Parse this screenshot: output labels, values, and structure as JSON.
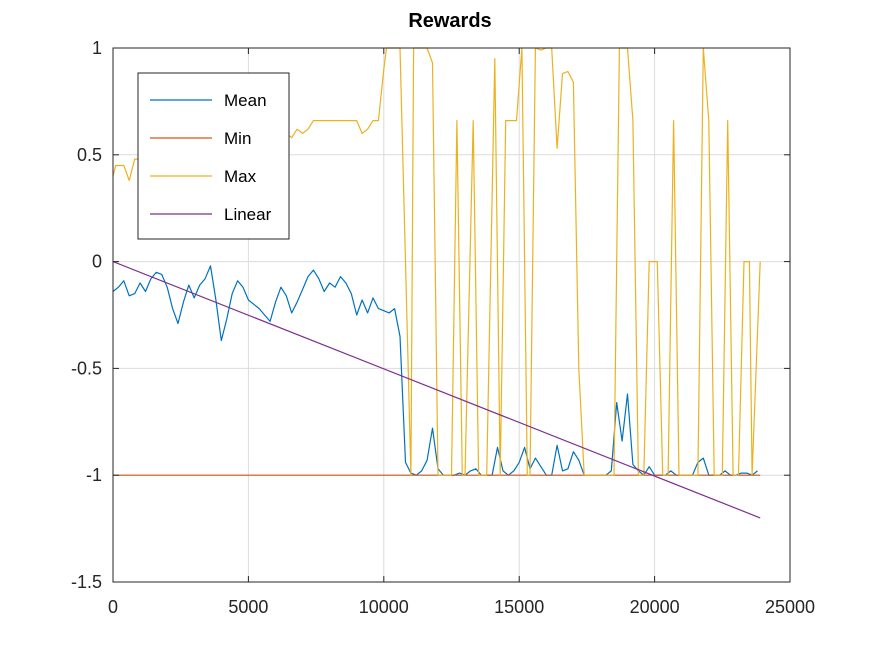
{
  "chart_data": {
    "type": "line",
    "title": "Rewards",
    "xlabel": "",
    "ylabel": "",
    "xlim": [
      0,
      25000
    ],
    "ylim": [
      -1.5,
      1
    ],
    "xticks": [
      0,
      5000,
      10000,
      15000,
      20000,
      25000
    ],
    "xtick_labels": [
      "0",
      "5000",
      "10000",
      "15000",
      "20000",
      "25000"
    ],
    "yticks": [
      -1.5,
      -1,
      -0.5,
      0,
      0.5,
      1
    ],
    "ytick_labels": [
      "-1.5",
      "-1",
      "-0.5",
      "0",
      "0.5",
      "1"
    ],
    "grid": true,
    "legend_position": "top-left",
    "series": [
      {
        "name": "Mean",
        "color": "#0072bd",
        "points": [
          [
            0,
            -0.14
          ],
          [
            200,
            -0.12
          ],
          [
            400,
            -0.09
          ],
          [
            600,
            -0.16
          ],
          [
            800,
            -0.15
          ],
          [
            1000,
            -0.1
          ],
          [
            1200,
            -0.14
          ],
          [
            1400,
            -0.08
          ],
          [
            1600,
            -0.05
          ],
          [
            1800,
            -0.06
          ],
          [
            2000,
            -0.12
          ],
          [
            2200,
            -0.22
          ],
          [
            2400,
            -0.29
          ],
          [
            2600,
            -0.19
          ],
          [
            2800,
            -0.11
          ],
          [
            3000,
            -0.17
          ],
          [
            3200,
            -0.11
          ],
          [
            3400,
            -0.08
          ],
          [
            3600,
            -0.02
          ],
          [
            3800,
            -0.18
          ],
          [
            4000,
            -0.37
          ],
          [
            4200,
            -0.27
          ],
          [
            4400,
            -0.15
          ],
          [
            4600,
            -0.09
          ],
          [
            4800,
            -0.12
          ],
          [
            5000,
            -0.18
          ],
          [
            5200,
            -0.2
          ],
          [
            5400,
            -0.22
          ],
          [
            5600,
            -0.25
          ],
          [
            5800,
            -0.28
          ],
          [
            6000,
            -0.19
          ],
          [
            6200,
            -0.12
          ],
          [
            6400,
            -0.16
          ],
          [
            6600,
            -0.24
          ],
          [
            6800,
            -0.19
          ],
          [
            7000,
            -0.13
          ],
          [
            7200,
            -0.07
          ],
          [
            7400,
            -0.04
          ],
          [
            7600,
            -0.08
          ],
          [
            7800,
            -0.14
          ],
          [
            8000,
            -0.1
          ],
          [
            8200,
            -0.12
          ],
          [
            8400,
            -0.07
          ],
          [
            8600,
            -0.1
          ],
          [
            8800,
            -0.15
          ],
          [
            9000,
            -0.25
          ],
          [
            9200,
            -0.18
          ],
          [
            9400,
            -0.24
          ],
          [
            9600,
            -0.17
          ],
          [
            9800,
            -0.22
          ],
          [
            10000,
            -0.23
          ],
          [
            10200,
            -0.24
          ],
          [
            10400,
            -0.22
          ],
          [
            10600,
            -0.35
          ],
          [
            10800,
            -0.94
          ],
          [
            11000,
            -0.99
          ],
          [
            11200,
            -1.0
          ],
          [
            11400,
            -0.98
          ],
          [
            11600,
            -0.93
          ],
          [
            11800,
            -0.78
          ],
          [
            12000,
            -0.97
          ],
          [
            12200,
            -1.0
          ],
          [
            12400,
            -1.0
          ],
          [
            12600,
            -1.0
          ],
          [
            12800,
            -0.99
          ],
          [
            13000,
            -1.0
          ],
          [
            13200,
            -0.98
          ],
          [
            13400,
            -0.97
          ],
          [
            13600,
            -1.0
          ],
          [
            13800,
            -1.0
          ],
          [
            14000,
            -1.0
          ],
          [
            14200,
            -0.87
          ],
          [
            14400,
            -0.98
          ],
          [
            14600,
            -1.0
          ],
          [
            14800,
            -0.98
          ],
          [
            15000,
            -0.94
          ],
          [
            15200,
            -0.87
          ],
          [
            15400,
            -0.97
          ],
          [
            15600,
            -0.92
          ],
          [
            15800,
            -0.96
          ],
          [
            16000,
            -1.0
          ],
          [
            16200,
            -1.0
          ],
          [
            16400,
            -0.86
          ],
          [
            16600,
            -0.98
          ],
          [
            16800,
            -0.97
          ],
          [
            17000,
            -0.89
          ],
          [
            17200,
            -0.93
          ],
          [
            17400,
            -1.0
          ],
          [
            17600,
            -1.0
          ],
          [
            17800,
            -1.0
          ],
          [
            18000,
            -1.0
          ],
          [
            18200,
            -1.0
          ],
          [
            18400,
            -0.98
          ],
          [
            18600,
            -0.66
          ],
          [
            18800,
            -0.84
          ],
          [
            19000,
            -0.62
          ],
          [
            19200,
            -0.95
          ],
          [
            19400,
            -0.98
          ],
          [
            19600,
            -1.0
          ],
          [
            19800,
            -0.96
          ],
          [
            20000,
            -1.0
          ],
          [
            20200,
            -1.0
          ],
          [
            20400,
            -1.0
          ],
          [
            20600,
            -0.98
          ],
          [
            20800,
            -1.0
          ],
          [
            21000,
            -1.0
          ],
          [
            21200,
            -1.0
          ],
          [
            21400,
            -1.0
          ],
          [
            21600,
            -0.94
          ],
          [
            21800,
            -0.92
          ],
          [
            22000,
            -1.0
          ],
          [
            22200,
            -1.0
          ],
          [
            22400,
            -1.0
          ],
          [
            22600,
            -0.98
          ],
          [
            22800,
            -1.0
          ],
          [
            23000,
            -1.0
          ],
          [
            23200,
            -0.99
          ],
          [
            23400,
            -0.99
          ],
          [
            23600,
            -1.0
          ],
          [
            23800,
            -0.98
          ]
        ]
      },
      {
        "name": "Min",
        "color": "#d95319",
        "points": [
          [
            0,
            -1
          ],
          [
            23900,
            -1
          ]
        ]
      },
      {
        "name": "Max",
        "color": "#edb120",
        "points": [
          [
            0,
            0.4
          ],
          [
            100,
            0.45
          ],
          [
            400,
            0.45
          ],
          [
            600,
            0.38
          ],
          [
            800,
            0.48
          ],
          [
            1000,
            0.48
          ],
          [
            1100,
            0.55
          ],
          [
            1400,
            0.55
          ],
          [
            1600,
            0.6
          ],
          [
            2000,
            0.62
          ],
          [
            2400,
            0.65
          ],
          [
            2800,
            0.62
          ],
          [
            3000,
            0.65
          ],
          [
            3400,
            0.66
          ],
          [
            3800,
            0.66
          ],
          [
            4200,
            0.66
          ],
          [
            4600,
            0.66
          ],
          [
            5000,
            0.66
          ],
          [
            5400,
            0.64
          ],
          [
            5800,
            0.66
          ],
          [
            6000,
            0.62
          ],
          [
            6200,
            0.57
          ],
          [
            6400,
            0.6
          ],
          [
            6600,
            0.58
          ],
          [
            6800,
            0.62
          ],
          [
            7000,
            0.6
          ],
          [
            7200,
            0.62
          ],
          [
            7400,
            0.66
          ],
          [
            7800,
            0.66
          ],
          [
            8200,
            0.66
          ],
          [
            8600,
            0.66
          ],
          [
            9000,
            0.66
          ],
          [
            9200,
            0.6
          ],
          [
            9400,
            0.62
          ],
          [
            9600,
            0.66
          ],
          [
            9800,
            0.66
          ],
          [
            10000,
            0.9
          ],
          [
            10100,
            1.0
          ],
          [
            10400,
            1.0
          ],
          [
            10600,
            1.0
          ],
          [
            10800,
            0.0
          ],
          [
            11000,
            -1.0
          ],
          [
            11100,
            1.0
          ],
          [
            11400,
            1.0
          ],
          [
            11600,
            1.0
          ],
          [
            11800,
            0.93
          ],
          [
            12000,
            -1.0
          ],
          [
            12200,
            -1.0
          ],
          [
            12500,
            -1.0
          ],
          [
            12700,
            0.66
          ],
          [
            12900,
            -1.0
          ],
          [
            13000,
            -1.0
          ],
          [
            13300,
            0.66
          ],
          [
            13500,
            -1.0
          ],
          [
            13800,
            -1.0
          ],
          [
            14100,
            0.95
          ],
          [
            14300,
            -1.0
          ],
          [
            14500,
            0.66
          ],
          [
            14900,
            0.66
          ],
          [
            15100,
            1.0
          ],
          [
            15300,
            -1.0
          ],
          [
            15400,
            -1.0
          ],
          [
            15600,
            1.0
          ],
          [
            15800,
            0.99
          ],
          [
            16000,
            1.0
          ],
          [
            16200,
            1.0
          ],
          [
            16400,
            0.53
          ],
          [
            16600,
            0.88
          ],
          [
            16800,
            0.89
          ],
          [
            17000,
            0.84
          ],
          [
            17200,
            -0.5
          ],
          [
            17400,
            -1.0
          ],
          [
            17800,
            -1.0
          ],
          [
            18200,
            -1.0
          ],
          [
            18500,
            -1.0
          ],
          [
            18700,
            1.0
          ],
          [
            19000,
            1.0
          ],
          [
            19200,
            0.66
          ],
          [
            19400,
            -1.0
          ],
          [
            19600,
            -1.0
          ],
          [
            19800,
            0.0
          ],
          [
            20100,
            0.0
          ],
          [
            20300,
            -1.0
          ],
          [
            20500,
            -1.0
          ],
          [
            20700,
            0.66
          ],
          [
            20900,
            -1.0
          ],
          [
            21300,
            -1.0
          ],
          [
            21600,
            -1.0
          ],
          [
            21800,
            1.0
          ],
          [
            22000,
            0.66
          ],
          [
            22200,
            -1.0
          ],
          [
            22500,
            -1.0
          ],
          [
            22700,
            0.66
          ],
          [
            22900,
            -1.0
          ],
          [
            23100,
            -1.0
          ],
          [
            23300,
            0.0
          ],
          [
            23500,
            0.0
          ],
          [
            23600,
            -1.0
          ],
          [
            23900,
            0.0
          ]
        ]
      },
      {
        "name": "Linear",
        "color": "#7e2f8e",
        "points": [
          [
            0,
            0
          ],
          [
            23900,
            -1.2
          ]
        ]
      }
    ]
  }
}
